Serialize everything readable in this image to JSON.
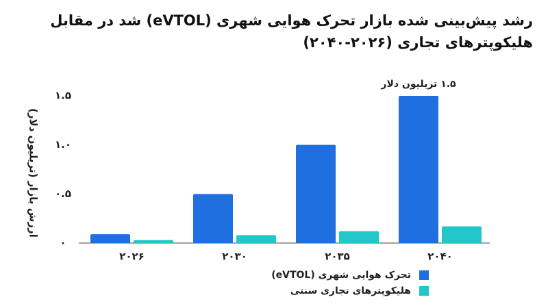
{
  "chart_data": {
    "type": "bar",
    "title": "رشد پیش‌بینی شده بازار تحرک هوایی شهری (eVTOL) شد در مقابل هلیکوپترهای تجاری (۲۰۲۶-۲۰۴۰)",
    "y_label": "ارزش بازار (تریلیون دلار)",
    "categories": [
      "۲۰۲۶",
      "۲۰۳۰",
      "۲۰۳۵",
      "۲۰۴۰"
    ],
    "series": [
      {
        "name": "تحرک هوایی شهری (eVTOL)",
        "color": "#1f6fe0",
        "values": [
          0.09,
          0.5,
          1.0,
          1.5
        ]
      },
      {
        "name": "هلیکوپترهای تجاری سنتی",
        "color": "#22c7c9",
        "values": [
          0.03,
          0.08,
          0.12,
          0.17
        ]
      }
    ],
    "annotation": {
      "text": "۱.۵ تریلیون دلار",
      "series": 0,
      "index": 3
    },
    "ylim": [
      0,
      1.5
    ],
    "yticks": [
      {
        "value": 0,
        "label": "۰"
      },
      {
        "value": 0.5,
        "label": "۰.۵"
      },
      {
        "value": 1.0,
        "label": "۱.۰"
      },
      {
        "value": 1.5,
        "label": "۱.۵"
      }
    ],
    "grid": false,
    "legend": "bottom-right"
  }
}
